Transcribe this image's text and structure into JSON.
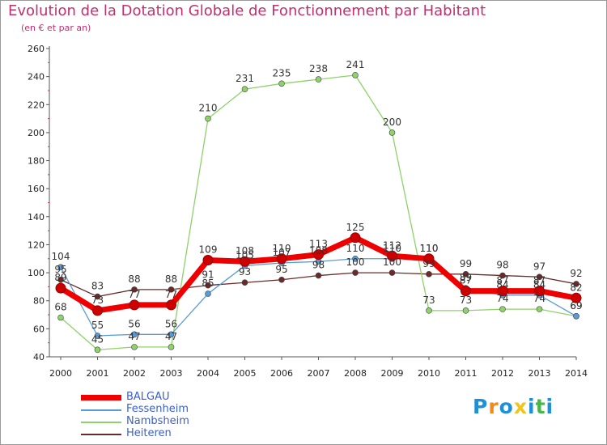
{
  "chart_data": {
    "type": "line",
    "title": "Evolution de la Dotation Globale de Fonctionnement par Habitant",
    "subtitle": "(en € et par an)",
    "x": [
      "2000",
      "2001",
      "2002",
      "2003",
      "2004",
      "2005",
      "2006",
      "2007",
      "2008",
      "2009",
      "2010",
      "2011",
      "2012",
      "2013",
      "2014"
    ],
    "ylim": [
      40,
      260
    ],
    "yticks": [
      40,
      60,
      80,
      100,
      120,
      140,
      160,
      180,
      200,
      220,
      240,
      260
    ],
    "grid": false,
    "legend_position": "bottom-left",
    "series": [
      {
        "name": "BALGAU",
        "color": "#ee0000",
        "values": [
          89,
          73,
          77,
          77,
          109,
          108,
          110,
          113,
          125,
          112,
          110,
          87,
          87,
          87,
          82
        ]
      },
      {
        "name": "Fessenheim",
        "color": "#5b9bd5",
        "values": [
          104,
          55,
          56,
          56,
          85,
          105,
          107,
          108,
          110,
          110,
          110,
          89,
          84,
          84,
          69
        ]
      },
      {
        "name": "Nambsheim",
        "color": "#8fd16a",
        "values": [
          68,
          45,
          47,
          47,
          210,
          231,
          235,
          238,
          241,
          200,
          73,
          73,
          74,
          74,
          69
        ]
      },
      {
        "name": "Heiteren",
        "color": "#6b2a2a",
        "values": [
          95,
          83,
          88,
          88,
          91,
          93,
          95,
          98,
          100,
          100,
          99,
          99,
          98,
          97,
          92
        ]
      }
    ]
  },
  "brand": {
    "logo_letters": [
      "P",
      "r",
      "o",
      "x",
      "i",
      "t",
      "i"
    ],
    "logo_colors": [
      "#1e90d8",
      "#f08a1c",
      "#1e90d8",
      "#f0c419",
      "#1e90d8",
      "#49b649",
      "#1e90d8"
    ]
  }
}
